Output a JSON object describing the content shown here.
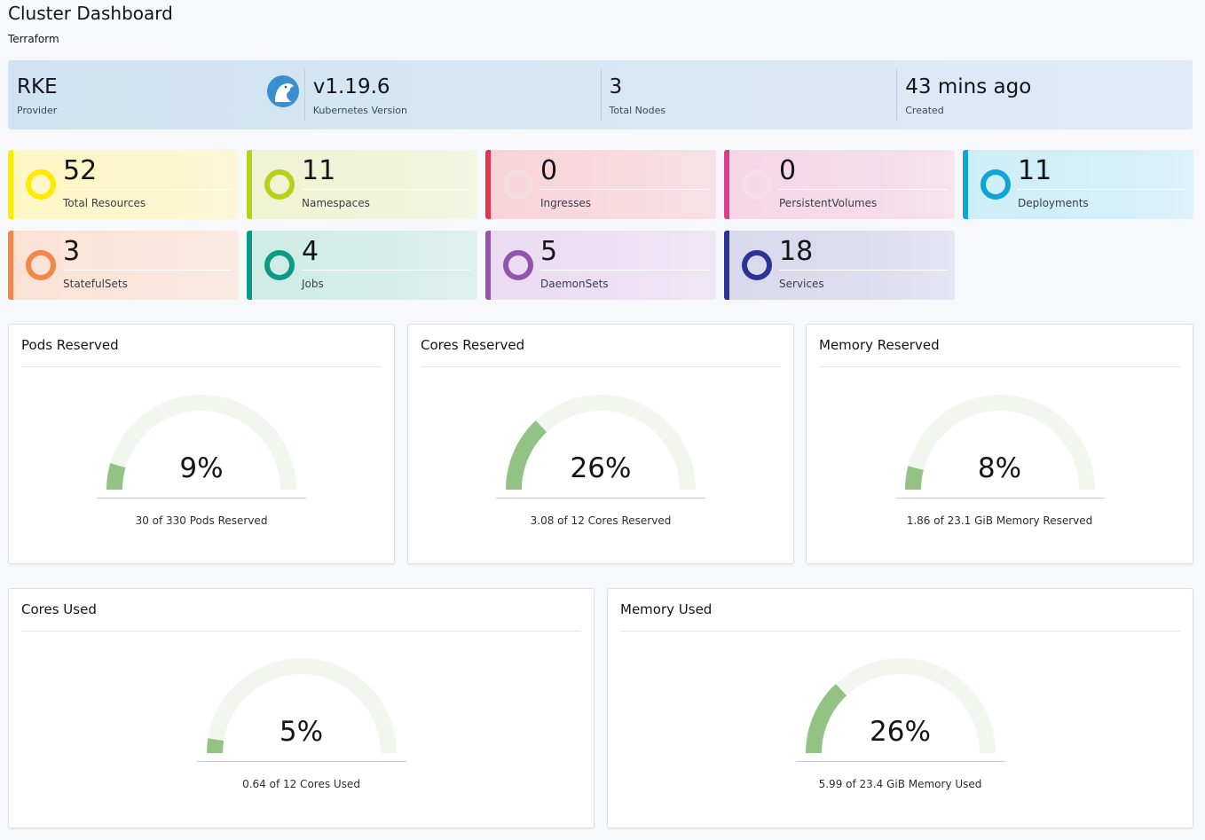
{
  "header": {
    "title": "Cluster Dashboard",
    "subtitle": "Terraform"
  },
  "banner": [
    {
      "value": "RKE",
      "label": "Provider",
      "icon": "rke-logo-icon"
    },
    {
      "value": "v1.19.6",
      "label": "Kubernetes Version"
    },
    {
      "value": "3",
      "label": "Total Nodes"
    },
    {
      "value": "43 mins ago",
      "label": "Created"
    }
  ],
  "tiles": [
    {
      "count": "52",
      "label": "Total Resources",
      "color": "#ffea00",
      "bg": "#fdf6c4"
    },
    {
      "count": "11",
      "label": "Namespaces",
      "color": "#b8cf1c",
      "bg": "#eff4d2"
    },
    {
      "count": "0",
      "label": "Ingresses",
      "color": "#e53350",
      "bg": "#f8d4da",
      "ring": "#f3dde1"
    },
    {
      "count": "0",
      "label": "PersistentVolumes",
      "color": "#d83f87",
      "bg": "#f6d6e6",
      "ring": "#f2dfe8"
    },
    {
      "count": "11",
      "label": "Deployments",
      "color": "#0fa3d6",
      "bg": "#cdeef8"
    },
    {
      "count": "3",
      "label": "StatefulSets",
      "color": "#f3874a",
      "bg": "#fbe2d5"
    },
    {
      "count": "4",
      "label": "Jobs",
      "color": "#0d9a86",
      "bg": "#cfece6"
    },
    {
      "count": "5",
      "label": "DaemonSets",
      "color": "#9255ad",
      "bg": "#ebdcf1"
    },
    {
      "count": "18",
      "label": "Services",
      "color": "#2b3395",
      "bg": "#d7d9ec"
    }
  ],
  "gauges": [
    {
      "title": "Pods Reserved",
      "percent": "9%",
      "fraction": 0.09,
      "caption": "30 of 330 Pods Reserved"
    },
    {
      "title": "Cores Reserved",
      "percent": "26%",
      "fraction": 0.26,
      "caption": "3.08 of 12 Cores Reserved"
    },
    {
      "title": "Memory Reserved",
      "percent": "8%",
      "fraction": 0.08,
      "caption": "1.86 of 23.1 GiB Memory Reserved"
    },
    {
      "title": "Cores Used",
      "percent": "5%",
      "fraction": 0.05,
      "caption": "0.64 of 12 Cores Used"
    },
    {
      "title": "Memory Used",
      "percent": "26%",
      "fraction": 0.26,
      "caption": "5.99 of 23.4 GiB Memory Used"
    }
  ],
  "colors": {
    "gauge_fill": "#93c384",
    "gauge_track": "#f1f6ef"
  }
}
